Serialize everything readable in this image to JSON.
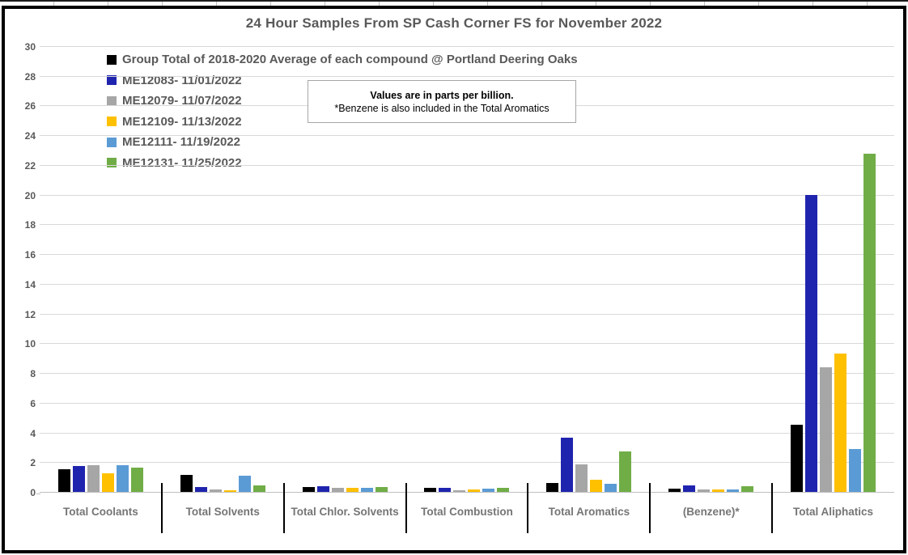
{
  "note": {
    "line1": "Values are in parts per billion.",
    "line2": "*Benzene is also included in the Total Aromatics"
  },
  "colors": {
    "title_text": "#595959",
    "legend_text": "#595959",
    "axis_text": "#595959",
    "category_text": "#757575",
    "gridline": "#d9d9d9",
    "frame_border": "#000000"
  },
  "chart_data": {
    "type": "bar",
    "title": "24 Hour Samples From SP Cash Corner FS for November 2022",
    "categories": [
      "Total Coolants",
      "Total Solvents",
      "Total Chlor. Solvents",
      "Total Combustion",
      "Total Aromatics",
      "(Benzene)*",
      "Total Aliphatics"
    ],
    "series": [
      {
        "name": "Group Total of 2018-2020 Average of each compound @ Portland Deering Oaks",
        "color": "#000000",
        "values": [
          1.55,
          1.15,
          0.35,
          0.3,
          0.6,
          0.2,
          4.5
        ]
      },
      {
        "name": "ME12083- 11/01/2022",
        "color": "#1f24ae",
        "values": [
          1.75,
          0.35,
          0.4,
          0.25,
          3.65,
          0.45,
          20.0
        ]
      },
      {
        "name": "ME12079- 11/07/2022",
        "color": "#a6a6a6",
        "values": [
          1.8,
          0.15,
          0.3,
          0.1,
          1.85,
          0.15,
          8.4
        ]
      },
      {
        "name": "ME12109- 11/13/2022",
        "color": "#ffc000",
        "values": [
          1.25,
          0.1,
          0.25,
          0.15,
          0.8,
          0.15,
          9.3
        ]
      },
      {
        "name": "ME12111- 11/19/2022",
        "color": "#5b9bd5",
        "values": [
          1.8,
          1.1,
          0.3,
          0.2,
          0.55,
          0.15,
          2.9
        ]
      },
      {
        "name": "ME12131- 11/25/2022",
        "color": "#70ad47",
        "values": [
          1.65,
          0.45,
          0.35,
          0.25,
          2.7,
          0.4,
          22.75
        ]
      }
    ],
    "ylim": [
      0,
      30
    ],
    "ytick_step": 2,
    "grid": true,
    "legend_position": "top-left",
    "ylabel": "",
    "xlabel": ""
  }
}
